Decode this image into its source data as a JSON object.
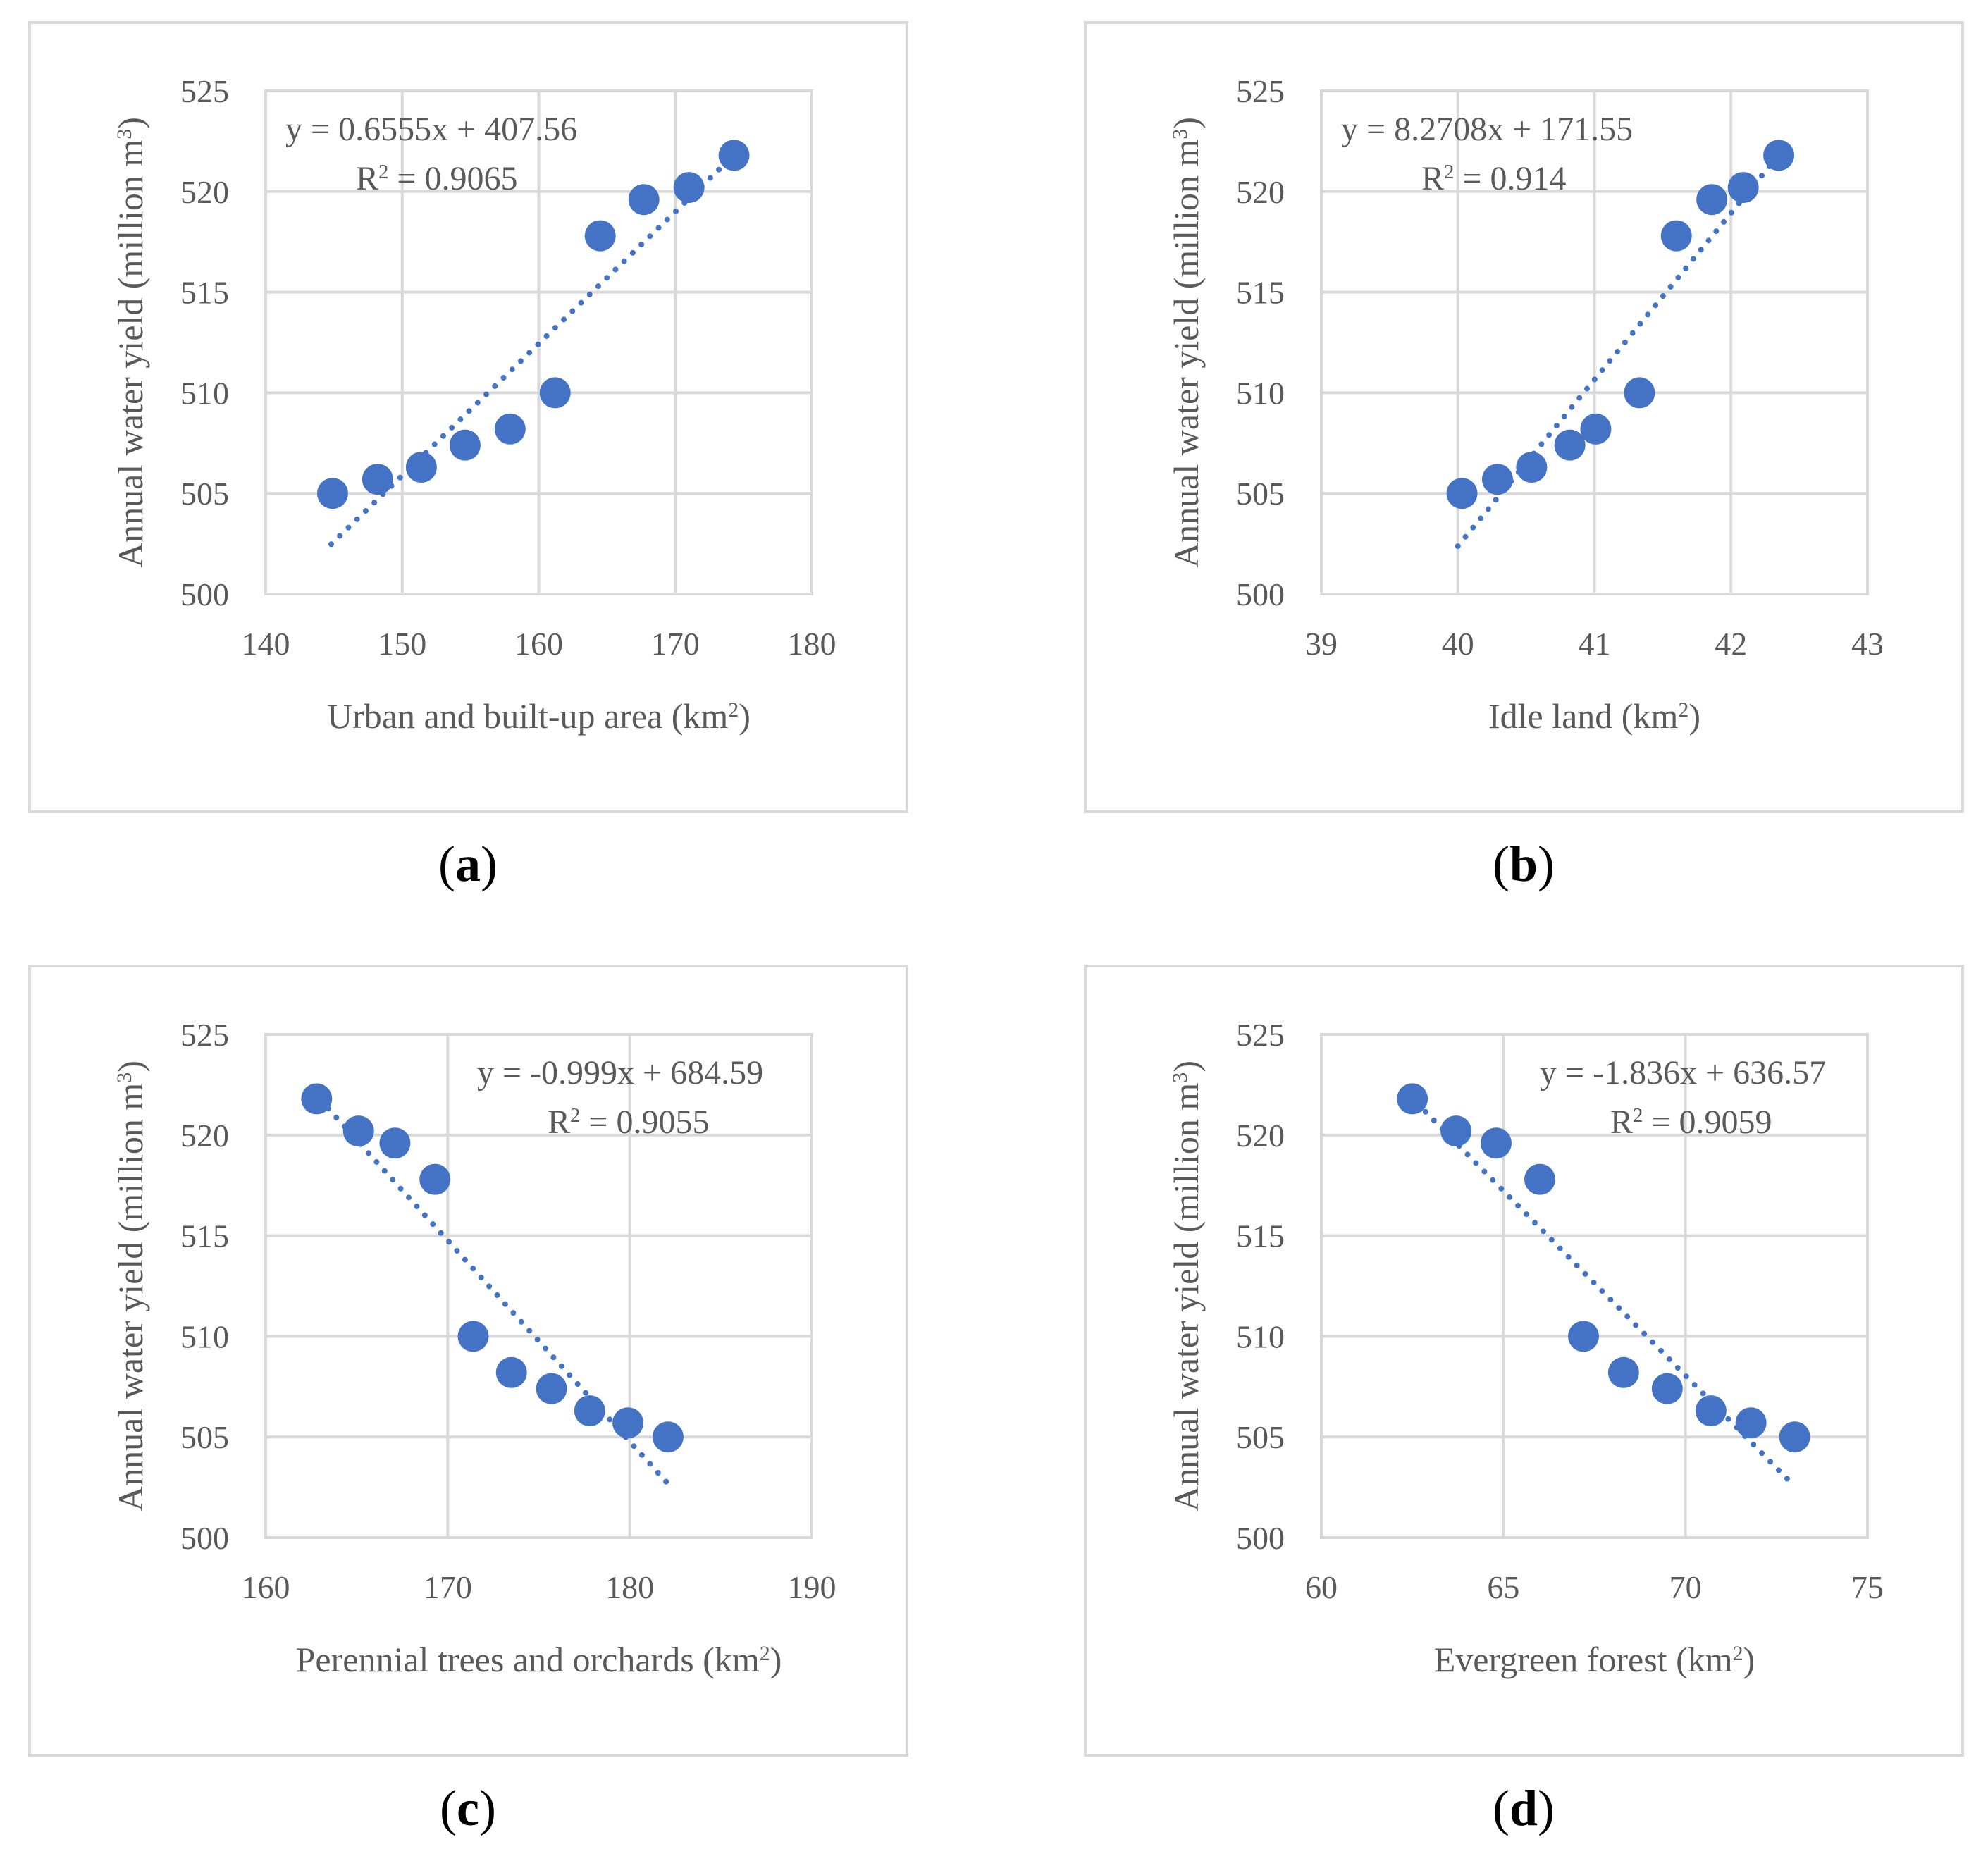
{
  "chart_data": [
    {
      "type": "scatter",
      "panel_label": "a",
      "xlabel": "Urban and built-up area (km²)",
      "ylabel": "Annual water yield (million m³)",
      "xlim": [
        140,
        180
      ],
      "ylim": [
        500,
        525
      ],
      "xticks": [
        "140",
        "150",
        "160",
        "170",
        "180"
      ],
      "yticks": [
        "500",
        "505",
        "510",
        "515",
        "520",
        "525"
      ],
      "trendline": {
        "equation": "y = 0.6555x + 407.56",
        "r2": "R² = 0.9065",
        "slope": 0.6555,
        "intercept": 407.56,
        "x_range": [
          144.8,
          174.4
        ]
      },
      "points": [
        {
          "x": 144.9,
          "y": 505.0
        },
        {
          "x": 148.2,
          "y": 505.7
        },
        {
          "x": 151.4,
          "y": 506.3
        },
        {
          "x": 154.6,
          "y": 507.4
        },
        {
          "x": 157.9,
          "y": 508.2
        },
        {
          "x": 161.2,
          "y": 510.0
        },
        {
          "x": 164.5,
          "y": 517.8
        },
        {
          "x": 167.7,
          "y": 519.6
        },
        {
          "x": 171.0,
          "y": 520.2
        },
        {
          "x": 174.3,
          "y": 521.8
        }
      ]
    },
    {
      "type": "scatter",
      "panel_label": "b",
      "xlabel": "Idle land (km²)",
      "ylabel": "Annual water yield (million m³)",
      "xlim": [
        39,
        43
      ],
      "ylim": [
        500,
        525
      ],
      "xticks": [
        "39",
        "40",
        "41",
        "42",
        "43"
      ],
      "yticks": [
        "500",
        "505",
        "510",
        "515",
        "520",
        "525"
      ],
      "trendline": {
        "equation": "y = 8.2708x + 171.55",
        "r2": "R² = 0.914",
        "slope": 8.2708,
        "intercept": 171.55,
        "x_range": [
          40.0,
          42.35
        ]
      },
      "points": [
        {
          "x": 40.03,
          "y": 505.0
        },
        {
          "x": 40.29,
          "y": 505.7
        },
        {
          "x": 40.54,
          "y": 506.3
        },
        {
          "x": 40.82,
          "y": 507.4
        },
        {
          "x": 41.01,
          "y": 508.2
        },
        {
          "x": 41.33,
          "y": 510.0
        },
        {
          "x": 41.6,
          "y": 517.8
        },
        {
          "x": 41.86,
          "y": 519.6
        },
        {
          "x": 42.09,
          "y": 520.2
        },
        {
          "x": 42.35,
          "y": 521.8
        }
      ]
    },
    {
      "type": "scatter",
      "panel_label": "c",
      "xlabel": "Perennial trees and orchards (km²)",
      "ylabel": "Annual water yield (million m³)",
      "xlim": [
        160,
        190
      ],
      "ylim": [
        500,
        525
      ],
      "xticks": [
        "160",
        "170",
        "180",
        "190"
      ],
      "yticks": [
        "500",
        "505",
        "510",
        "515",
        "520",
        "525"
      ],
      "trendline": {
        "equation": "y = -0.999x + 684.59",
        "r2": "R² = 0.9055",
        "slope": -0.999,
        "intercept": 684.59,
        "x_range": [
          163.0,
          182.0
        ]
      },
      "points": [
        {
          "x": 162.8,
          "y": 521.8
        },
        {
          "x": 165.1,
          "y": 520.2
        },
        {
          "x": 167.1,
          "y": 519.6
        },
        {
          "x": 169.3,
          "y": 517.8
        },
        {
          "x": 171.4,
          "y": 510.0
        },
        {
          "x": 173.5,
          "y": 508.2
        },
        {
          "x": 175.7,
          "y": 507.4
        },
        {
          "x": 177.8,
          "y": 506.3
        },
        {
          "x": 179.9,
          "y": 505.7
        },
        {
          "x": 182.1,
          "y": 505.0
        }
      ]
    },
    {
      "type": "scatter",
      "panel_label": "d",
      "xlabel": "Evergreen forest (km²)",
      "ylabel": "Annual water yield (million m³)",
      "xlim": [
        60,
        75
      ],
      "ylim": [
        500,
        525
      ],
      "xticks": [
        "60",
        "65",
        "70",
        "75"
      ],
      "yticks": [
        "500",
        "505",
        "510",
        "515",
        "520",
        "525"
      ],
      "trendline": {
        "equation": "y = -1.836x + 636.57",
        "r2": "R² = 0.9059",
        "slope": -1.836,
        "intercept": 636.57,
        "x_range": [
          62.4,
          73.0
        ]
      },
      "points": [
        {
          "x": 62.5,
          "y": 521.8
        },
        {
          "x": 63.7,
          "y": 520.2
        },
        {
          "x": 64.8,
          "y": 519.6
        },
        {
          "x": 66.0,
          "y": 517.8
        },
        {
          "x": 67.2,
          "y": 510.0
        },
        {
          "x": 68.3,
          "y": 508.2
        },
        {
          "x": 69.5,
          "y": 507.4
        },
        {
          "x": 70.7,
          "y": 506.3
        },
        {
          "x": 71.8,
          "y": 505.7
        },
        {
          "x": 73.0,
          "y": 505.0
        }
      ]
    }
  ]
}
